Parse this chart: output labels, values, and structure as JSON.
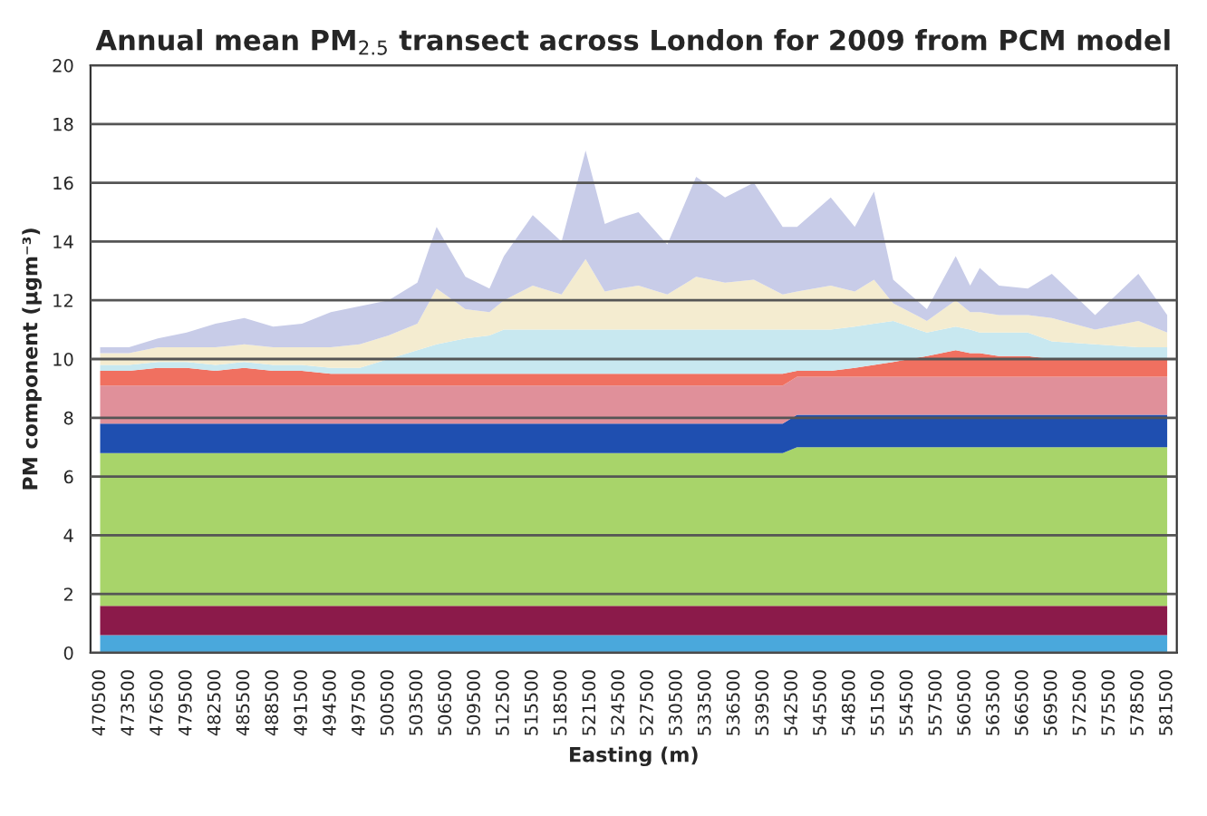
{
  "chart_data": {
    "type": "area",
    "stacked": true,
    "title": "Annual mean PM$_{2.5}$ transect across London for 2009 from PCM model",
    "xlabel": "Easting (m)",
    "ylabel": "PM component (µgm⁻³)",
    "x": [
      470500,
      473500,
      476500,
      479500,
      482500,
      485500,
      488500,
      491500,
      494500,
      497500,
      500500,
      503500,
      505500,
      508500,
      511000,
      512500,
      515500,
      518500,
      521000,
      523000,
      524500,
      526500,
      529500,
      532500,
      535500,
      538500,
      541500,
      543000,
      546500,
      549000,
      551000,
      553000,
      556500,
      559500,
      561000,
      562000,
      564000,
      567000,
      569500,
      574000,
      578500,
      581500
    ],
    "xlim": [
      469500,
      582500
    ],
    "xticks": [
      470500,
      473500,
      476500,
      479500,
      482500,
      485500,
      488500,
      491500,
      494500,
      497500,
      500500,
      503500,
      506500,
      509500,
      512500,
      515500,
      518500,
      521500,
      524500,
      527500,
      530500,
      533500,
      536500,
      539500,
      542500,
      545500,
      548500,
      551500,
      554500,
      557500,
      560500,
      563500,
      566500,
      569500,
      572500,
      575500,
      578500,
      581500
    ],
    "ylim": [
      0,
      20
    ],
    "yticks": [
      0,
      2,
      4,
      6,
      8,
      10,
      12,
      14,
      16,
      18,
      20
    ],
    "grid": "y",
    "series": [
      {
        "color": "#4aa8dc",
        "values": [
          0.6,
          0.6,
          0.6,
          0.6,
          0.6,
          0.6,
          0.6,
          0.6,
          0.6,
          0.6,
          0.6,
          0.6,
          0.6,
          0.6,
          0.6,
          0.6,
          0.6,
          0.6,
          0.6,
          0.6,
          0.6,
          0.6,
          0.6,
          0.6,
          0.6,
          0.6,
          0.6,
          0.6,
          0.6,
          0.6,
          0.6,
          0.6,
          0.6,
          0.6,
          0.6,
          0.6,
          0.6,
          0.6,
          0.6,
          0.6,
          0.6,
          0.6
        ]
      },
      {
        "color": "#8b1a4a",
        "values": [
          1.0,
          1.0,
          1.0,
          1.0,
          1.0,
          1.0,
          1.0,
          1.0,
          1.0,
          1.0,
          1.0,
          1.0,
          1.0,
          1.0,
          1.0,
          1.0,
          1.0,
          1.0,
          1.0,
          1.0,
          1.0,
          1.0,
          1.0,
          1.0,
          1.0,
          1.0,
          1.0,
          1.0,
          1.0,
          1.0,
          1.0,
          1.0,
          1.0,
          1.0,
          1.0,
          1.0,
          1.0,
          1.0,
          1.0,
          1.0,
          1.0,
          1.0
        ]
      },
      {
        "color": "#a8d46a",
        "values": [
          5.2,
          5.2,
          5.2,
          5.2,
          5.2,
          5.2,
          5.2,
          5.2,
          5.2,
          5.2,
          5.2,
          5.2,
          5.2,
          5.2,
          5.2,
          5.2,
          5.2,
          5.2,
          5.2,
          5.2,
          5.2,
          5.2,
          5.2,
          5.2,
          5.2,
          5.2,
          5.2,
          5.4,
          5.4,
          5.4,
          5.4,
          5.4,
          5.4,
          5.4,
          5.4,
          5.4,
          5.4,
          5.4,
          5.4,
          5.4,
          5.4,
          5.4
        ]
      },
      {
        "color": "#1f4fb0",
        "values": [
          1.0,
          1.0,
          1.0,
          1.0,
          1.0,
          1.0,
          1.0,
          1.0,
          1.0,
          1.0,
          1.0,
          1.0,
          1.0,
          1.0,
          1.0,
          1.0,
          1.0,
          1.0,
          1.0,
          1.0,
          1.0,
          1.0,
          1.0,
          1.0,
          1.0,
          1.0,
          1.0,
          1.1,
          1.1,
          1.1,
          1.1,
          1.1,
          1.1,
          1.1,
          1.1,
          1.1,
          1.1,
          1.1,
          1.1,
          1.1,
          1.1,
          1.1
        ]
      },
      {
        "color": "#e0909a",
        "values": [
          1.3,
          1.3,
          1.3,
          1.3,
          1.3,
          1.3,
          1.3,
          1.3,
          1.3,
          1.3,
          1.3,
          1.3,
          1.3,
          1.3,
          1.3,
          1.3,
          1.3,
          1.3,
          1.3,
          1.3,
          1.3,
          1.3,
          1.3,
          1.3,
          1.3,
          1.3,
          1.3,
          1.3,
          1.3,
          1.3,
          1.3,
          1.3,
          1.3,
          1.3,
          1.3,
          1.3,
          1.3,
          1.3,
          1.3,
          1.3,
          1.3,
          1.3
        ]
      },
      {
        "color": "#f07060",
        "values": [
          0.5,
          0.5,
          0.6,
          0.6,
          0.5,
          0.6,
          0.5,
          0.5,
          0.4,
          0.4,
          0.4,
          0.4,
          0.4,
          0.4,
          0.4,
          0.4,
          0.4,
          0.4,
          0.4,
          0.4,
          0.4,
          0.4,
          0.4,
          0.4,
          0.4,
          0.4,
          0.4,
          0.2,
          0.2,
          0.3,
          0.4,
          0.5,
          0.7,
          0.9,
          0.8,
          0.8,
          0.7,
          0.7,
          0.6,
          0.6,
          0.6,
          0.6
        ]
      },
      {
        "color": "#c8e8f0",
        "values": [
          0.2,
          0.2,
          0.2,
          0.2,
          0.2,
          0.2,
          0.2,
          0.2,
          0.2,
          0.2,
          0.5,
          0.8,
          1.0,
          1.2,
          1.3,
          1.5,
          1.5,
          1.5,
          1.5,
          1.5,
          1.5,
          1.5,
          1.5,
          1.5,
          1.5,
          1.5,
          1.5,
          1.4,
          1.4,
          1.4,
          1.4,
          1.4,
          0.8,
          0.8,
          0.8,
          0.7,
          0.8,
          0.8,
          0.6,
          0.5,
          0.4,
          0.4
        ]
      },
      {
        "color": "#f4ecd0",
        "values": [
          0.4,
          0.4,
          0.5,
          0.5,
          0.6,
          0.6,
          0.6,
          0.6,
          0.7,
          0.8,
          0.8,
          0.9,
          1.9,
          1.0,
          0.8,
          1.0,
          1.5,
          1.2,
          2.4,
          1.3,
          1.4,
          1.5,
          1.2,
          1.8,
          1.6,
          1.7,
          1.2,
          1.3,
          1.5,
          1.2,
          1.5,
          0.6,
          0.4,
          0.9,
          0.6,
          0.7,
          0.6,
          0.6,
          0.8,
          0.5,
          0.9,
          0.5
        ]
      },
      {
        "color": "#c8cce8",
        "values": [
          0.2,
          0.2,
          0.3,
          0.5,
          0.8,
          0.9,
          0.7,
          0.8,
          1.2,
          1.3,
          1.2,
          1.4,
          2.1,
          1.1,
          0.8,
          1.5,
          2.4,
          1.8,
          3.7,
          2.3,
          2.4,
          2.5,
          1.7,
          3.4,
          2.9,
          3.3,
          2.3,
          2.2,
          3.0,
          2.2,
          3.0,
          0.8,
          0.4,
          1.5,
          0.9,
          1.5,
          1.0,
          0.9,
          1.5,
          0.5,
          1.6,
          0.6
        ]
      }
    ]
  }
}
